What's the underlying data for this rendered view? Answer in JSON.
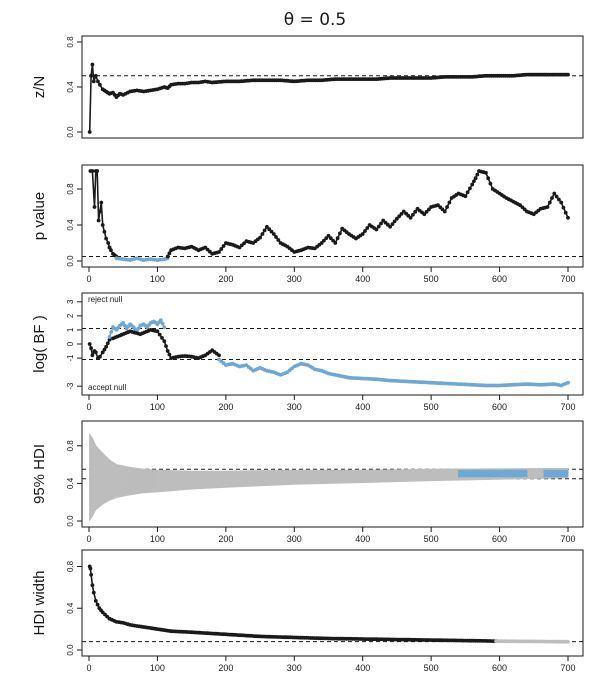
{
  "figure_title": "θ = 0.5",
  "colors": {
    "ink": "#1a1a1a",
    "blue": "#6fa8d4",
    "gray": "#bdbdbd"
  },
  "chart_data": [
    {
      "id": "zn",
      "type": "line",
      "ylabel": "z/N",
      "xlim": [
        0,
        700
      ],
      "ylim": [
        0,
        0.8
      ],
      "yticks": [
        "0.0",
        "0.4",
        "0.8"
      ],
      "yticks_values": [
        0,
        0.4,
        0.8
      ],
      "xticks": [],
      "reference_lines": [
        0.5
      ],
      "series": [
        {
          "color": "ink",
          "x": [
            1,
            3,
            5,
            7,
            10,
            13,
            16,
            20,
            25,
            30,
            35,
            40,
            45,
            50,
            60,
            70,
            80,
            90,
            100,
            110,
            115,
            120,
            130,
            140,
            150,
            160,
            170,
            180,
            200,
            220,
            240,
            260,
            280,
            300,
            320,
            340,
            360,
            380,
            400,
            420,
            440,
            460,
            480,
            500,
            520,
            540,
            560,
            580,
            600,
            620,
            640,
            660,
            680,
            700
          ],
          "y": [
            0.0,
            0.5,
            0.6,
            0.45,
            0.5,
            0.45,
            0.42,
            0.38,
            0.36,
            0.34,
            0.35,
            0.31,
            0.34,
            0.33,
            0.36,
            0.37,
            0.36,
            0.37,
            0.38,
            0.4,
            0.39,
            0.42,
            0.43,
            0.43,
            0.44,
            0.44,
            0.45,
            0.44,
            0.45,
            0.45,
            0.46,
            0.46,
            0.46,
            0.45,
            0.46,
            0.46,
            0.47,
            0.47,
            0.47,
            0.47,
            0.48,
            0.48,
            0.48,
            0.48,
            0.49,
            0.49,
            0.49,
            0.5,
            0.5,
            0.5,
            0.51,
            0.51,
            0.51,
            0.51
          ]
        }
      ]
    },
    {
      "id": "pval",
      "type": "line",
      "ylabel": "p value",
      "xlim": [
        0,
        700
      ],
      "ylim": [
        0,
        1
      ],
      "yticks": [
        "0.0",
        "0.4",
        "0.8"
      ],
      "yticks_values": [
        0,
        0.4,
        0.8
      ],
      "xticks": [
        "0",
        "100",
        "200",
        "300",
        "400",
        "500",
        "600",
        "700"
      ],
      "xticks_values": [
        0,
        100,
        200,
        300,
        400,
        500,
        600,
        700
      ],
      "reference_lines": [
        0.05
      ],
      "series": [
        {
          "color": "ink",
          "x": [
            2,
            5,
            8,
            10,
            12,
            14,
            16,
            18,
            20,
            25,
            28,
            30
          ],
          "y": [
            1.0,
            1.0,
            0.6,
            1.0,
            1.0,
            0.45,
            0.55,
            0.65,
            0.4,
            0.25,
            0.2,
            0.15
          ]
        },
        {
          "color": "ink",
          "x": [
            30,
            32,
            35,
            40
          ],
          "y": [
            0.15,
            0.12,
            0.08,
            0.05
          ]
        },
        {
          "color": "blue",
          "x": [
            40,
            50,
            60,
            70,
            80,
            90,
            100,
            110,
            115
          ],
          "y": [
            0.03,
            0.02,
            0.01,
            0.03,
            0.01,
            0.02,
            0.01,
            0.02,
            0.03
          ]
        },
        {
          "color": "ink",
          "x": [
            115,
            120,
            130,
            140,
            150,
            160,
            170,
            180,
            190,
            200,
            210,
            220,
            230,
            240,
            250,
            260,
            270,
            280,
            290,
            300,
            310,
            320,
            330,
            340,
            350,
            360,
            370,
            380,
            390,
            400,
            410,
            420,
            430,
            440,
            450,
            460,
            470,
            480,
            490,
            500,
            510,
            520,
            530,
            540,
            550,
            560,
            565,
            570,
            580,
            590,
            600,
            610,
            620,
            630,
            640,
            650,
            660,
            670,
            680,
            690,
            700
          ],
          "y": [
            0.05,
            0.12,
            0.15,
            0.14,
            0.16,
            0.12,
            0.15,
            0.08,
            0.1,
            0.2,
            0.18,
            0.15,
            0.22,
            0.2,
            0.26,
            0.38,
            0.3,
            0.2,
            0.16,
            0.1,
            0.12,
            0.15,
            0.14,
            0.2,
            0.28,
            0.2,
            0.36,
            0.3,
            0.25,
            0.3,
            0.4,
            0.35,
            0.45,
            0.38,
            0.47,
            0.55,
            0.48,
            0.58,
            0.52,
            0.6,
            0.62,
            0.55,
            0.7,
            0.75,
            0.72,
            0.85,
            0.92,
            1.0,
            0.98,
            0.8,
            0.75,
            0.7,
            0.66,
            0.62,
            0.55,
            0.52,
            0.58,
            0.6,
            0.75,
            0.65,
            0.48
          ]
        }
      ]
    },
    {
      "id": "bf",
      "type": "line",
      "ylabel": "log( BF )",
      "xlim": [
        0,
        700
      ],
      "ylim": [
        -3.2,
        3.2
      ],
      "yticks": [
        "-3",
        "-1",
        "0",
        "1",
        "2",
        "3"
      ],
      "yticks_values": [
        -3,
        -1,
        0,
        1,
        2,
        3
      ],
      "xticks": [
        "0",
        "100",
        "200",
        "300",
        "400",
        "500",
        "600",
        "700"
      ],
      "xticks_values": [
        0,
        100,
        200,
        300,
        400,
        500,
        600,
        700
      ],
      "reference_lines": [
        1.1,
        -1.1
      ],
      "annotations": [
        "reject null",
        "accept null"
      ],
      "series": [
        {
          "color": "ink",
          "x": [
            1,
            3,
            5,
            8,
            10,
            13,
            16,
            20,
            25,
            30
          ],
          "y": [
            0.0,
            -0.3,
            -0.8,
            -0.5,
            -0.6,
            -1.0,
            -0.9,
            -0.6,
            -0.2,
            0.3
          ]
        },
        {
          "color": "blue",
          "x": [
            30,
            35,
            40,
            45,
            50,
            55,
            60,
            65,
            70,
            75,
            80,
            85,
            90,
            95,
            100,
            105,
            110
          ],
          "y": [
            0.5,
            1.2,
            1.0,
            1.3,
            1.5,
            1.1,
            1.4,
            1.2,
            0.9,
            1.3,
            1.4,
            1.2,
            1.5,
            1.6,
            1.4,
            1.7,
            1.2
          ]
        },
        {
          "color": "ink",
          "x": [
            35,
            45,
            60,
            75,
            90,
            100,
            110,
            115,
            120,
            130,
            140,
            150,
            160,
            170,
            180,
            190
          ],
          "y": [
            0.4,
            0.6,
            0.9,
            0.7,
            1.0,
            0.9,
            0.2,
            -0.5,
            -1.0,
            -0.9,
            -0.85,
            -0.9,
            -1.0,
            -0.8,
            -0.45,
            -0.8
          ]
        },
        {
          "color": "blue",
          "x": [
            190,
            200,
            210,
            220,
            230,
            240,
            250,
            260,
            270,
            280,
            290,
            300,
            310,
            320,
            330,
            340,
            350,
            360,
            380,
            400,
            420,
            440,
            460,
            480,
            500,
            520,
            540,
            560,
            580,
            600,
            620,
            640,
            660,
            680,
            690,
            700
          ],
          "y": [
            -1.1,
            -1.5,
            -1.4,
            -1.6,
            -1.5,
            -1.9,
            -1.7,
            -1.9,
            -2.0,
            -2.2,
            -2.0,
            -1.6,
            -1.4,
            -1.5,
            -1.8,
            -1.9,
            -2.1,
            -2.2,
            -2.4,
            -2.45,
            -2.5,
            -2.6,
            -2.65,
            -2.7,
            -2.75,
            -2.8,
            -2.85,
            -2.9,
            -2.95,
            -2.95,
            -2.9,
            -2.85,
            -2.9,
            -2.85,
            -2.95,
            -2.75
          ]
        }
      ]
    },
    {
      "id": "hdi",
      "type": "area",
      "ylabel": "95% HDI",
      "xlim": [
        0,
        700
      ],
      "ylim": [
        0,
        1
      ],
      "yticks": [
        "0.0",
        "0.4",
        "0.8"
      ],
      "yticks_values": [
        0,
        0.4,
        0.8
      ],
      "xticks": [
        "0",
        "100",
        "200",
        "300",
        "400",
        "500",
        "600",
        "700"
      ],
      "xticks_values": [
        0,
        100,
        200,
        300,
        400,
        500,
        600,
        700
      ],
      "reference_lines": [
        0.55,
        0.45
      ],
      "bands": [
        {
          "color": "gray",
          "x": [
            1,
            5,
            10,
            20,
            30,
            40,
            60,
            80,
            100,
            150,
            200,
            300,
            400,
            500,
            700
          ],
          "lower": [
            0.01,
            0.05,
            0.12,
            0.18,
            0.22,
            0.25,
            0.28,
            0.3,
            0.31,
            0.34,
            0.36,
            0.39,
            0.41,
            0.43,
            0.46
          ],
          "upper": [
            0.92,
            0.88,
            0.8,
            0.72,
            0.65,
            0.6,
            0.57,
            0.55,
            0.54,
            0.53,
            0.53,
            0.54,
            0.54,
            0.55,
            0.56
          ]
        },
        {
          "color": "blue",
          "x": [
            540,
            560,
            580,
            600,
            620,
            640
          ],
          "lower": [
            0.47,
            0.47,
            0.47,
            0.47,
            0.47,
            0.47
          ],
          "upper": [
            0.54,
            0.54,
            0.54,
            0.54,
            0.54,
            0.54
          ]
        },
        {
          "color": "blue",
          "x": [
            665,
            680,
            700
          ],
          "lower": [
            0.47,
            0.47,
            0.47
          ],
          "upper": [
            0.54,
            0.54,
            0.54
          ]
        }
      ]
    },
    {
      "id": "width",
      "type": "line",
      "ylabel": "HDI width",
      "xlim": [
        0,
        700
      ],
      "ylim": [
        0,
        0.9
      ],
      "yticks": [
        "0.0",
        "0.4",
        "0.8"
      ],
      "yticks_values": [
        0,
        0.4,
        0.8
      ],
      "xticks": [
        "0",
        "100",
        "200",
        "300",
        "400",
        "500",
        "600",
        "700"
      ],
      "xticks_values": [
        0,
        100,
        200,
        300,
        400,
        500,
        600,
        700
      ],
      "reference_lines": [
        0.08
      ],
      "series": [
        {
          "color": "ink",
          "x": [
            1,
            2,
            3,
            5,
            7,
            10,
            15,
            20,
            30,
            40,
            50,
            60,
            70,
            80,
            100,
            120,
            150,
            200,
            250,
            300,
            350,
            400,
            450,
            500,
            550,
            595
          ],
          "y": [
            0.8,
            0.78,
            0.72,
            0.62,
            0.55,
            0.47,
            0.4,
            0.36,
            0.3,
            0.27,
            0.26,
            0.24,
            0.23,
            0.22,
            0.2,
            0.18,
            0.17,
            0.15,
            0.13,
            0.12,
            0.11,
            0.105,
            0.1,
            0.095,
            0.09,
            0.085
          ]
        },
        {
          "color": "gray",
          "x": [
            595,
            620,
            650,
            680,
            700
          ],
          "y": [
            0.085,
            0.083,
            0.082,
            0.08,
            0.079
          ]
        }
      ]
    }
  ]
}
